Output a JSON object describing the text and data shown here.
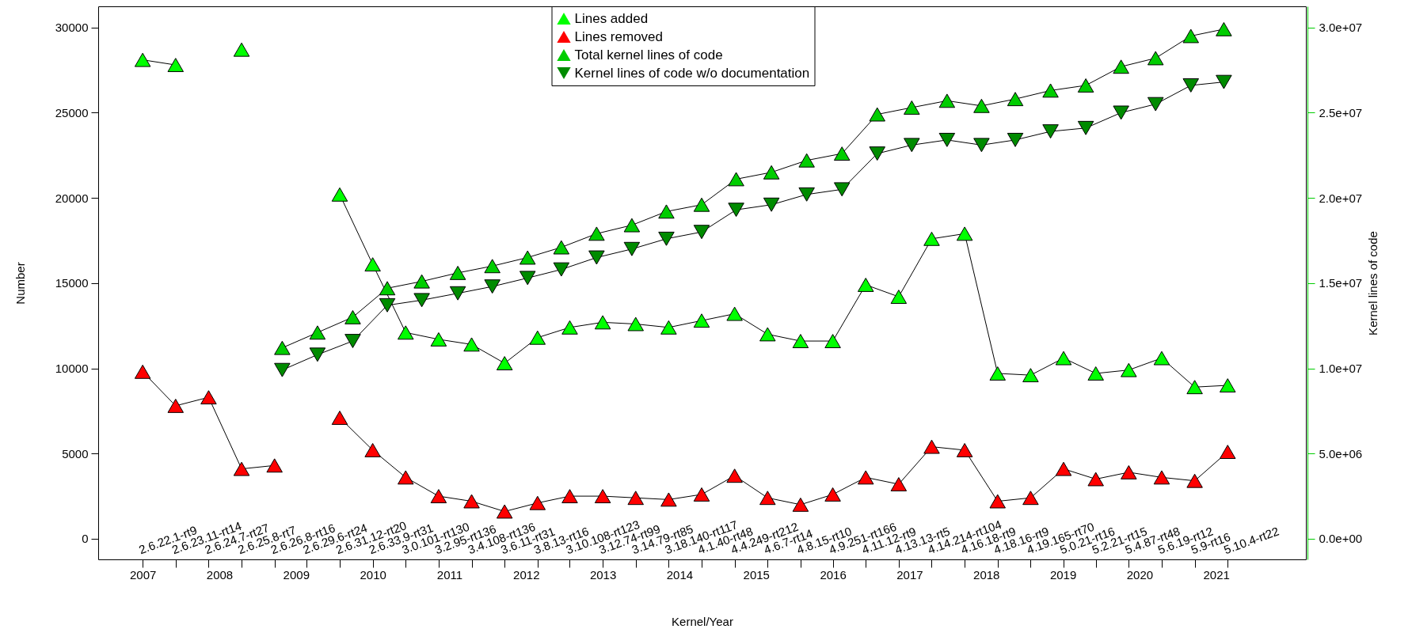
{
  "chart_data": {
    "type": "line",
    "xlabel": "Kernel/Year",
    "ylabel": "Number",
    "y2label": "Kernel lines of code",
    "x": [
      2007.0,
      2007.43,
      2007.86,
      2008.29,
      2008.72,
      2009.14,
      2009.57,
      2010.0,
      2010.43,
      2010.86,
      2011.29,
      2011.72,
      2012.15,
      2012.57,
      2013.0,
      2013.43,
      2013.86,
      2014.29,
      2014.72,
      2015.15,
      2015.58,
      2016.0,
      2016.43,
      2016.86,
      2017.29,
      2017.72,
      2018.15,
      2018.58,
      2019.01,
      2019.43,
      2019.86,
      2020.29,
      2020.72,
      2021.15
    ],
    "series": [
      {
        "name": "Lines added",
        "color": "#00ff00",
        "marker": "triangle",
        "values": [
          28100,
          27800,
          null,
          28700,
          null,
          null,
          20200,
          16100,
          12100,
          11700,
          11400,
          10300,
          11800,
          12400,
          12700,
          12600,
          12400,
          12800,
          13200,
          12000,
          11600,
          11600,
          14900,
          14200,
          17600,
          17900,
          9700,
          9600,
          10600,
          9700,
          9900,
          10600,
          8900,
          9000
        ]
      },
      {
        "name": "Lines removed",
        "color": "#ff0000",
        "marker": "triangle",
        "values": [
          9800,
          7800,
          8300,
          4100,
          4300,
          null,
          7100,
          5200,
          3600,
          2500,
          2200,
          1600,
          2100,
          2500,
          2500,
          2400,
          2300,
          2600,
          3700,
          2400,
          2000,
          2600,
          3600,
          3200,
          5400,
          5200,
          2200,
          2400,
          4100,
          3500,
          3900,
          3600,
          3400,
          5100
        ]
      },
      {
        "name": "Total kernel lines of code",
        "color": "#00cd00",
        "marker": "triangle",
        "axis": "y2",
        "x": [
          2008.82,
          2009.28,
          2009.74,
          2010.19,
          2010.64,
          2011.11,
          2011.56,
          2012.02,
          2012.46,
          2012.92,
          2013.38,
          2013.83,
          2014.29,
          2014.74,
          2015.2,
          2015.66,
          2016.12,
          2016.58,
          2017.03,
          2017.49,
          2017.94,
          2018.38,
          2018.84,
          2019.3,
          2019.76,
          2020.21,
          2020.67,
          2021.1
        ],
        "values": [
          11200000,
          12100000,
          13000000,
          14700000,
          15100000,
          15600000,
          16000000,
          16500000,
          17100000,
          17900000,
          18400000,
          19200000,
          19600000,
          21100000,
          21500000,
          22200000,
          22600000,
          24900000,
          25300000,
          25700000,
          25400000,
          25800000,
          26300000,
          26600000,
          27700000,
          28200000,
          29500000,
          29900000
        ]
      },
      {
        "name": "Kernel lines of code w/o documentation",
        "color": "#008b00",
        "marker": "triangle-down",
        "axis": "y2",
        "x": [
          2008.82,
          2009.28,
          2009.74,
          2010.19,
          2010.64,
          2011.11,
          2011.56,
          2012.02,
          2012.46,
          2012.92,
          2013.38,
          2013.83,
          2014.29,
          2014.74,
          2015.2,
          2015.66,
          2016.12,
          2016.58,
          2017.03,
          2017.49,
          2017.94,
          2018.38,
          2018.84,
          2019.3,
          2019.76,
          2020.21,
          2020.67,
          2021.1
        ],
        "values": [
          9900000,
          10800000,
          11600000,
          13700000,
          14000000,
          14400000,
          14800000,
          15300000,
          15800000,
          16500000,
          17000000,
          17600000,
          18000000,
          19300000,
          19600000,
          20200000,
          20500000,
          22600000,
          23100000,
          23400000,
          23100000,
          23400000,
          23900000,
          24100000,
          25000000,
          25500000,
          26600000,
          26800000
        ]
      }
    ],
    "xlim": [
      2006.42,
      2022.17
    ],
    "xticks": [
      2007,
      2008,
      2009,
      2010,
      2011,
      2012,
      2013,
      2014,
      2015,
      2016,
      2017,
      2018,
      2019,
      2020,
      2021
    ],
    "annotations": [
      "2.6.22.1-rt9",
      "2.6.23.11-rt14",
      "2.6.24.7-rt27",
      "2.6.25.8-rt7",
      "2.6.26.8-rt16",
      "2.6.29.6-rt24",
      "2.6.31.12-rt20",
      "2.6.33.9-rt31",
      "3.0.101-rt130",
      "3.2.95-rt136",
      "3.4.108-rt136",
      "3.6.11-rt31",
      "3.8.13-rt16",
      "3.10.108-rt123",
      "3.12.74-rt99",
      "3.14.79-rt85",
      "3.18.140-rt117",
      "4.1.40-rt48",
      "4.4.249-rt212",
      "4.6.7-rt14",
      "4.8.15-rt10",
      "4.9.251-rt166",
      "4.11.12-rt9",
      "4.13.13-rt5",
      "4.14.214-rt104",
      "4.16.18-rt9",
      "4.18.16-rt9",
      "4.19.165-rt70",
      "5.0.21-rt16",
      "5.2.21-rt15",
      "5.4.87-rt48",
      "5.6.19-rt12",
      "5.9-rt16",
      "5.10.4-rt22"
    ],
    "ylim": [
      -1210,
      31240
    ],
    "yticks": [
      0,
      5000,
      10000,
      15000,
      20000,
      25000,
      30000
    ],
    "y2lim": [
      -1210000,
      31240000
    ],
    "y2ticks": [
      {
        "value": 0,
        "label": "0.0e+00"
      },
      {
        "value": 5000000,
        "label": "5.0e+06"
      },
      {
        "value": 10000000,
        "label": "1.0e+07"
      },
      {
        "value": 15000000,
        "label": "1.5e+07"
      },
      {
        "value": 20000000,
        "label": "2.0e+07"
      },
      {
        "value": 25000000,
        "label": "2.5e+07"
      },
      {
        "value": 30000000,
        "label": "3.0e+07"
      }
    ],
    "legend": "top",
    "grid": false
  }
}
